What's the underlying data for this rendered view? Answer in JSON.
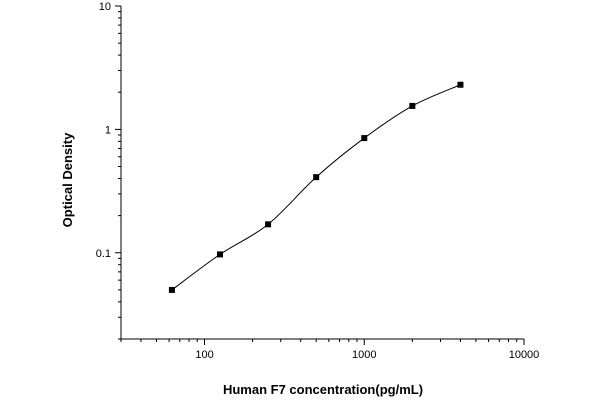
{
  "chart_data": {
    "type": "scatter",
    "title": "",
    "xlabel": "Human F7 concentration(pg/mL)",
    "ylabel": "Optical Density",
    "xscale": "log",
    "yscale": "log",
    "xlim": [
      30,
      10000
    ],
    "ylim": [
      0.02,
      10
    ],
    "x_ticks": [
      100,
      1000,
      10000
    ],
    "y_ticks": [
      0.1,
      1,
      10
    ],
    "x_tick_labels": [
      "100",
      "1000",
      "10000"
    ],
    "y_tick_labels": [
      "0.1",
      "1",
      "10"
    ],
    "grid": false,
    "legend": "none",
    "series": [
      {
        "marker": "square",
        "fit_curve": true,
        "x": [
          62.5,
          125,
          250,
          500,
          1000,
          2000,
          4000
        ],
        "y": [
          0.05,
          0.097,
          0.17,
          0.41,
          0.85,
          1.55,
          2.3
        ]
      }
    ]
  }
}
